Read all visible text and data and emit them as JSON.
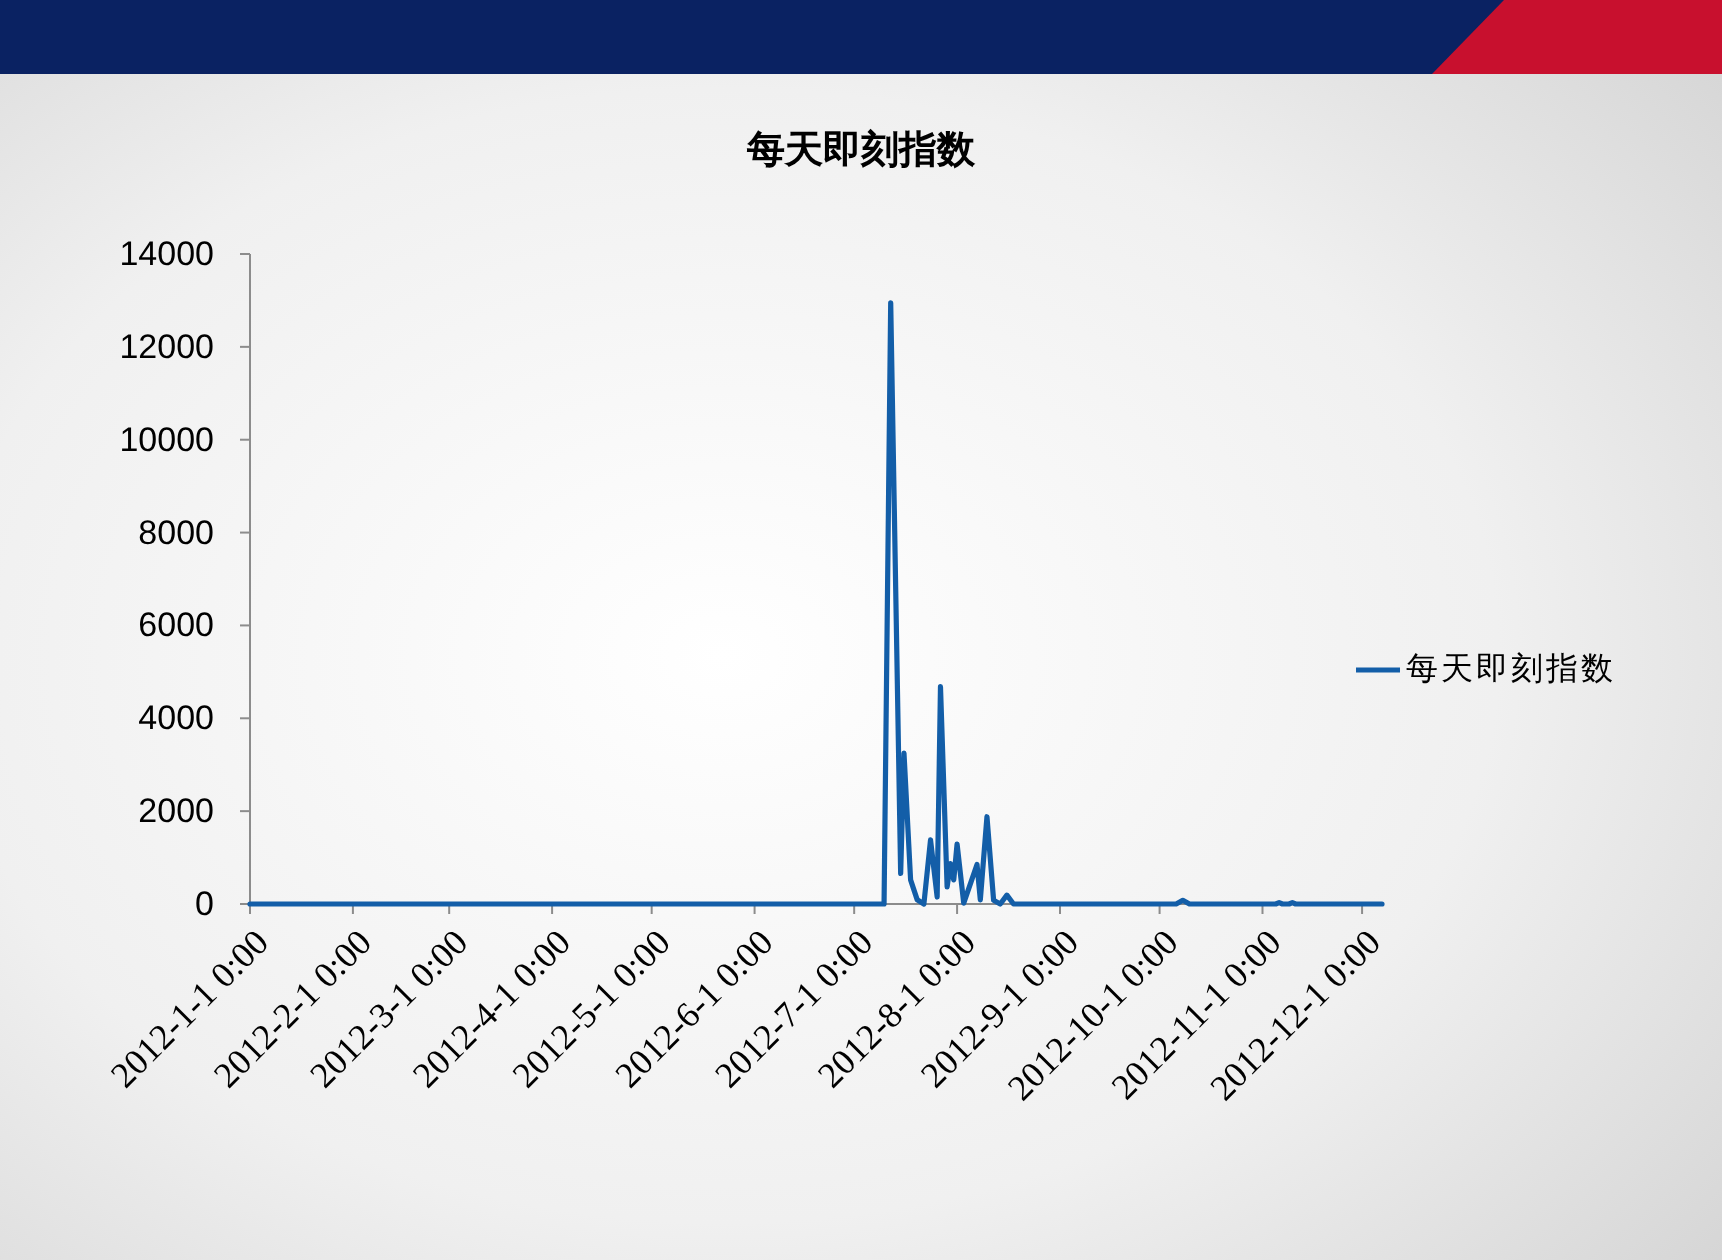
{
  "chart_data": {
    "type": "line",
    "title": "每天即刻指数",
    "xlim": [
      "2012-01-01",
      "2012-12-07"
    ],
    "xticks": [
      {
        "value": "2012-01-01",
        "label": "2012-1-1 0:00"
      },
      {
        "value": "2012-02-01",
        "label": "2012-2-1 0:00"
      },
      {
        "value": "2012-03-01",
        "label": "2012-3-1 0:00"
      },
      {
        "value": "2012-04-01",
        "label": "2012-4-1 0:00"
      },
      {
        "value": "2012-05-01",
        "label": "2012-5-1 0:00"
      },
      {
        "value": "2012-06-01",
        "label": "2012-6-1 0:00"
      },
      {
        "value": "2012-07-01",
        "label": "2012-7-1 0:00"
      },
      {
        "value": "2012-08-01",
        "label": "2012-8-1 0:00"
      },
      {
        "value": "2012-09-01",
        "label": "2012-9-1 0:00"
      },
      {
        "value": "2012-10-01",
        "label": "2012-10-1 0:00"
      },
      {
        "value": "2012-11-01",
        "label": "2012-11-1 0:00"
      },
      {
        "value": "2012-12-01",
        "label": "2012-12-1 0:00"
      }
    ],
    "ylim": [
      0,
      14000
    ],
    "yticks": [
      0,
      2000,
      4000,
      6000,
      8000,
      10000,
      12000,
      14000
    ],
    "legend": "right",
    "x": [
      "2012-01-01",
      "2012-07-10",
      "2012-07-12",
      "2012-07-15",
      "2012-07-16",
      "2012-07-18",
      "2012-07-20",
      "2012-07-22",
      "2012-07-24",
      "2012-07-26",
      "2012-07-27",
      "2012-07-29",
      "2012-07-30",
      "2012-07-31",
      "2012-08-01",
      "2012-08-03",
      "2012-08-07",
      "2012-08-08",
      "2012-08-10",
      "2012-08-12",
      "2012-08-14",
      "2012-08-16",
      "2012-08-18",
      "2012-10-06",
      "2012-10-08",
      "2012-10-10",
      "2012-11-05",
      "2012-11-06",
      "2012-11-07",
      "2012-11-09",
      "2012-11-10",
      "2012-11-11",
      "2012-12-07"
    ],
    "series": [
      {
        "name": "每天即刻指数",
        "color": "#135ea8",
        "values": [
          0,
          0,
          12950,
          660,
          3250,
          520,
          90,
          0,
          1380,
          150,
          4680,
          370,
          870,
          520,
          1290,
          20,
          850,
          90,
          1880,
          80,
          0,
          190,
          0,
          0,
          80,
          0,
          0,
          30,
          0,
          0,
          30,
          0,
          0
        ]
      }
    ]
  }
}
